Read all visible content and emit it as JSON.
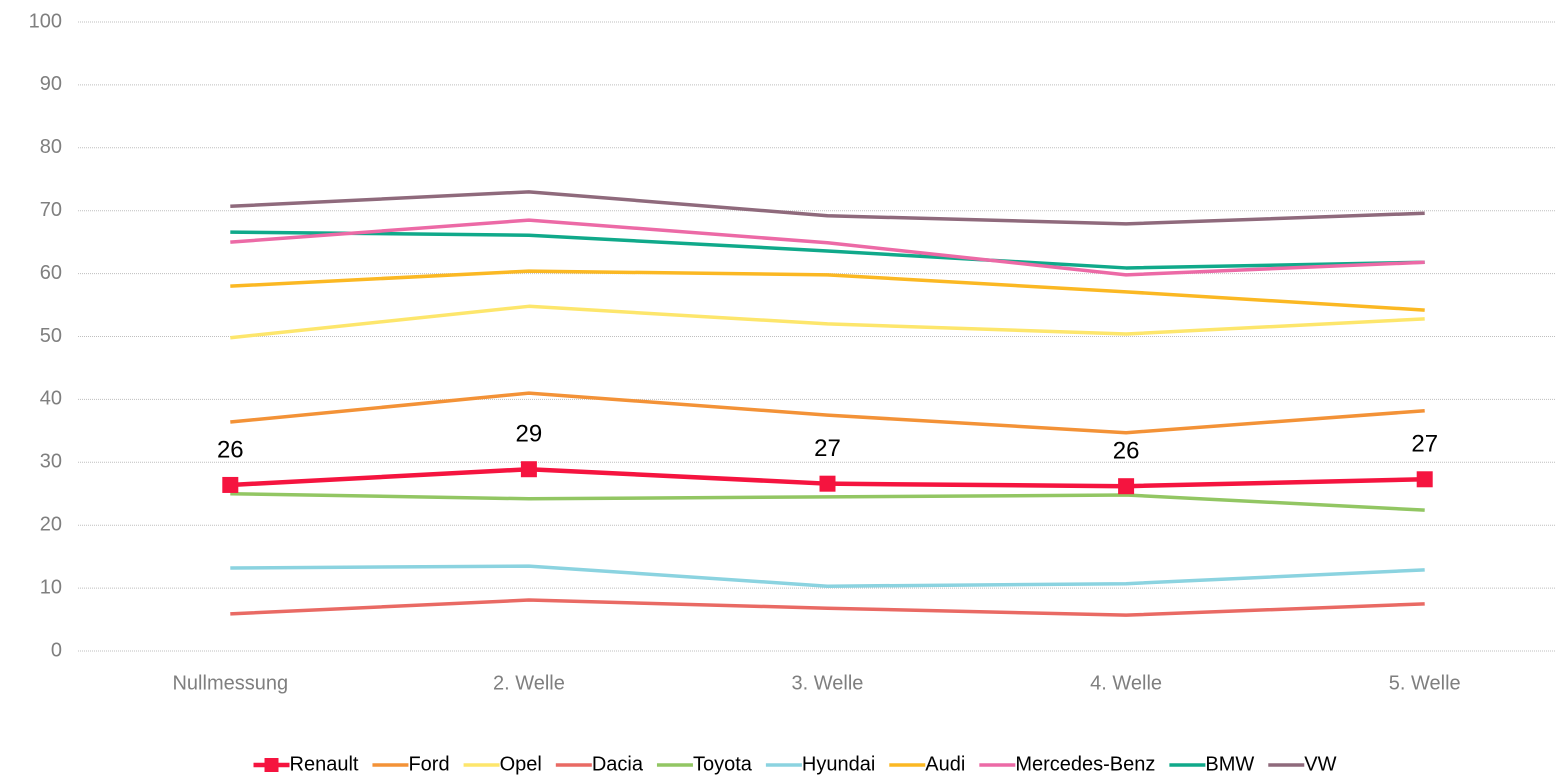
{
  "chart_data": {
    "type": "line",
    "categories": [
      "Nullmessung",
      "2. Welle",
      "3. Welle",
      "4. Welle",
      "5. Welle"
    ],
    "ylim": [
      0,
      100
    ],
    "yticks": [
      0,
      10,
      20,
      30,
      40,
      50,
      60,
      70,
      80,
      90,
      100
    ],
    "grid": true,
    "legend": "bottom",
    "series": [
      {
        "name": "Renault",
        "color": "#f5143f",
        "marker": "square",
        "values": [
          26.4,
          28.9,
          26.6,
          26.2,
          27.3
        ],
        "value_labels": [
          "26",
          "29",
          "27",
          "26",
          "27"
        ]
      },
      {
        "name": "Ford",
        "color": "#f39237",
        "values": [
          36.4,
          41.0,
          37.5,
          34.7,
          38.2
        ]
      },
      {
        "name": "Opel",
        "color": "#fde66c",
        "values": [
          49.8,
          54.8,
          52.0,
          50.4,
          52.8
        ]
      },
      {
        "name": "Dacia",
        "color": "#e96a64",
        "values": [
          5.9,
          8.1,
          6.8,
          5.7,
          7.5
        ]
      },
      {
        "name": "Toyota",
        "color": "#92c663",
        "values": [
          25.0,
          24.2,
          24.5,
          24.8,
          22.4
        ]
      },
      {
        "name": "Hyundai",
        "color": "#8bd3e0",
        "values": [
          13.2,
          13.5,
          10.3,
          10.7,
          12.9
        ]
      },
      {
        "name": "Audi",
        "color": "#fbb823",
        "values": [
          58.0,
          60.4,
          59.8,
          57.1,
          54.2
        ]
      },
      {
        "name": "Mercedes-Benz",
        "color": "#ec6aa6",
        "values": [
          65.0,
          68.5,
          64.9,
          59.8,
          61.8
        ]
      },
      {
        "name": "BMW",
        "color": "#10a98a",
        "values": [
          66.6,
          66.1,
          63.6,
          60.9,
          61.8
        ]
      },
      {
        "name": "VW",
        "color": "#8f6a7c",
        "values": [
          70.7,
          73.0,
          69.2,
          67.9,
          69.6
        ]
      }
    ]
  }
}
